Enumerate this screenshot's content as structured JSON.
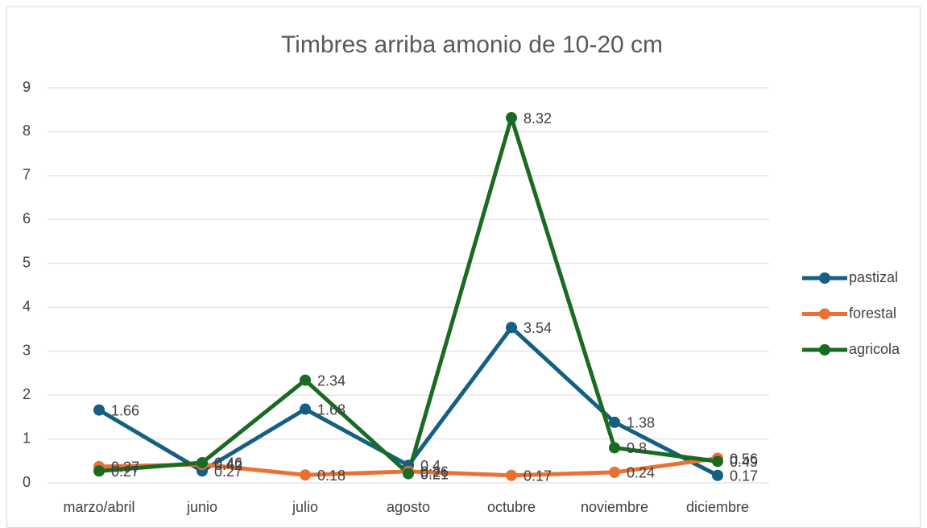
{
  "chart_data": {
    "type": "line",
    "title": "Timbres arriba amonio de 10-20 cm",
    "categories": [
      "marzo/abril",
      "junio",
      "julio",
      "agosto",
      "octubre",
      "noviembre",
      "diciembre"
    ],
    "series": [
      {
        "name": "pastizal",
        "color": "#156082",
        "values": [
          1.66,
          0.27,
          1.68,
          0.4,
          3.54,
          1.38,
          0.17
        ]
      },
      {
        "name": "forestal",
        "color": "#E97132",
        "values": [
          0.37,
          0.42,
          0.18,
          0.26,
          0.17,
          0.24,
          0.56
        ]
      },
      {
        "name": "agricola",
        "color": "#196B24",
        "values": [
          0.27,
          0.46,
          2.34,
          0.21,
          8.32,
          0.8,
          0.49
        ]
      }
    ],
    "ylim": [
      0,
      9
    ],
    "yticks": [
      0,
      1,
      2,
      3,
      4,
      5,
      6,
      7,
      8,
      9
    ],
    "grid": true,
    "legend": "right",
    "data_labels": true
  }
}
